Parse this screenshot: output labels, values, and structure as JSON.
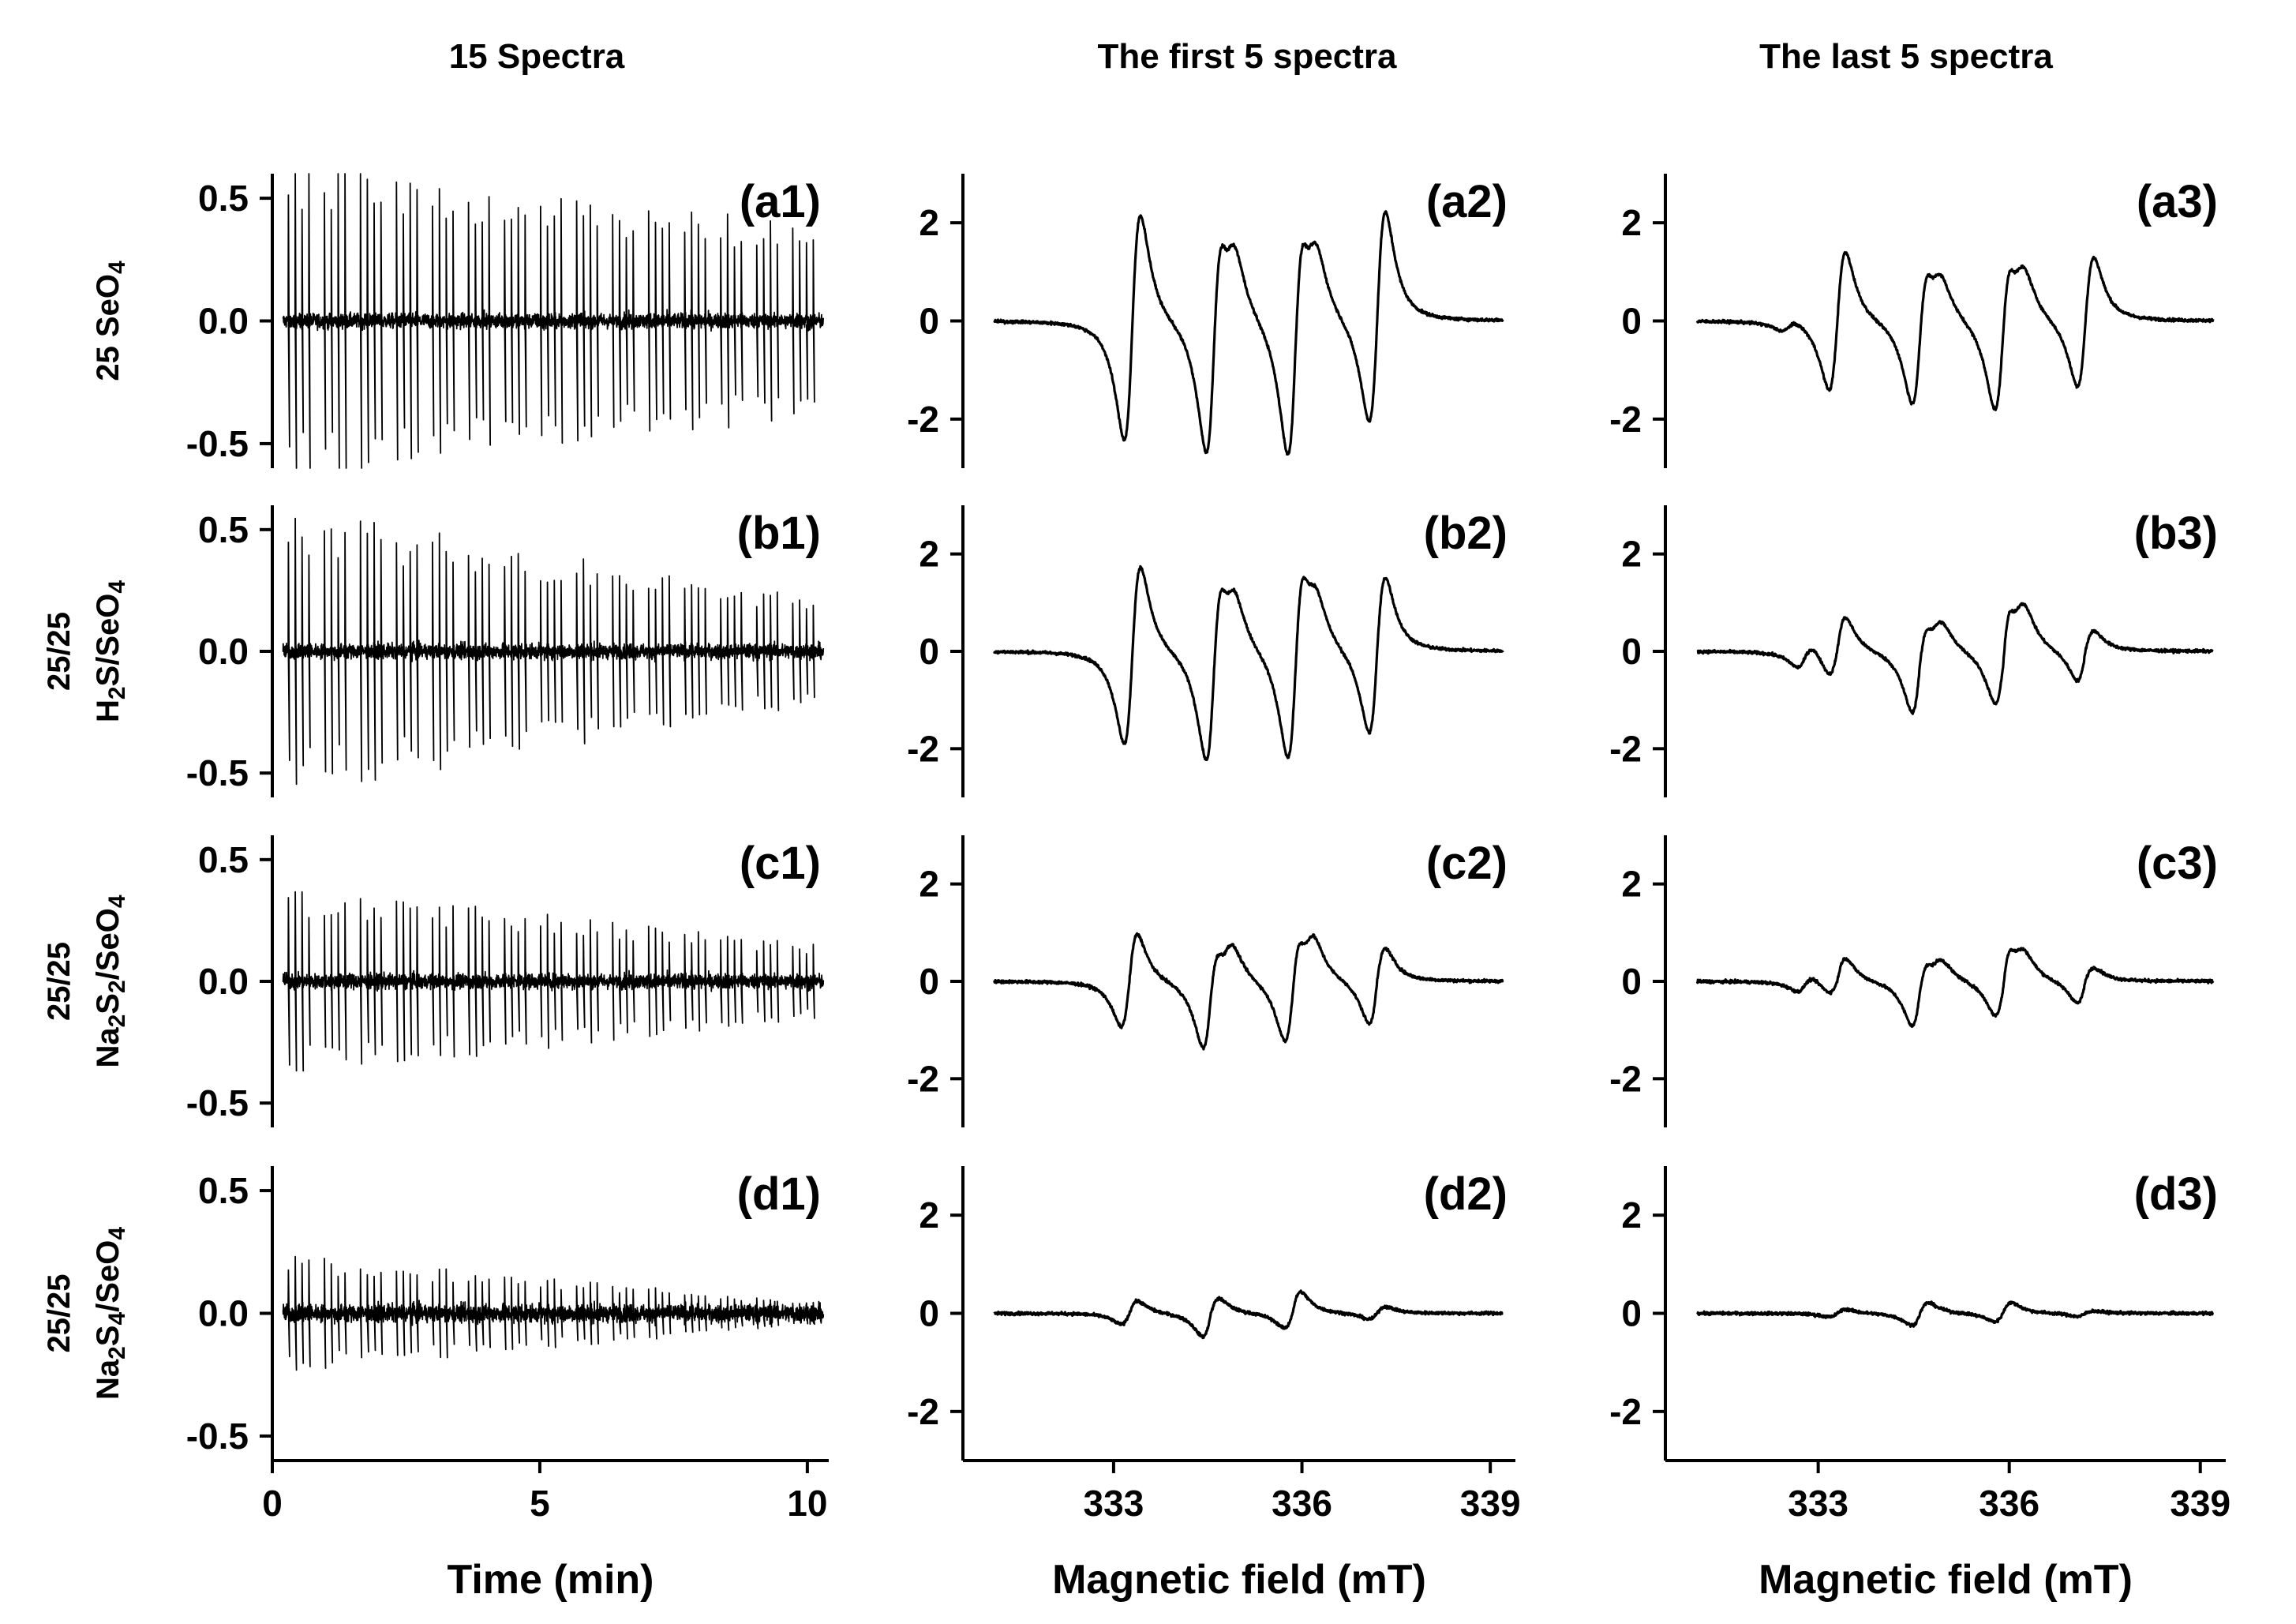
{
  "column_titles": [
    "15 Spectra",
    "The first 5 spectra",
    "The last 5 spectra"
  ],
  "row_labels": [
    {
      "prefix": "",
      "parts": [
        [
          "25 SeO",
          ""
        ],
        [
          "4",
          "sub"
        ]
      ]
    },
    {
      "prefix": "25/25",
      "parts": [
        [
          "H",
          ""
        ],
        [
          "2",
          "sub"
        ],
        [
          "S/SeO",
          ""
        ],
        [
          "4",
          "sub"
        ]
      ]
    },
    {
      "prefix": "25/25",
      "parts": [
        [
          "Na",
          ""
        ],
        [
          "2",
          "sub"
        ],
        [
          "S",
          ""
        ],
        [
          "2",
          "sub"
        ],
        [
          "/SeO",
          ""
        ],
        [
          "4",
          "sub"
        ]
      ]
    },
    {
      "prefix": "25/25",
      "parts": [
        [
          "Na",
          ""
        ],
        [
          "2",
          "sub"
        ],
        [
          "S",
          ""
        ],
        [
          "4",
          "sub"
        ],
        [
          "/SeO",
          ""
        ],
        [
          "4",
          "sub"
        ]
      ]
    }
  ],
  "row_label_text": [
    "25 SeO4",
    "25/25 H2S/SeO4",
    "25/25 Na2S2/SeO4",
    "25/25 Na2S4/SeO4"
  ],
  "chart_data": [
    {
      "id": "a1",
      "type": "line",
      "panel_label": "(a1)",
      "xlabel": "Time (min)",
      "ylabel": "",
      "xlim": [
        0,
        10.4
      ],
      "ylim": [
        -0.6,
        0.6
      ],
      "x_ticks": [
        {
          "v": 0,
          "label": "0"
        },
        {
          "v": 5,
          "label": "5"
        },
        {
          "v": 10,
          "label": "10"
        }
      ],
      "y_ticks": [
        {
          "v": 0.5,
          "label": "0.5"
        },
        {
          "v": 0,
          "label": "0.0"
        },
        {
          "v": -0.5,
          "label": "-0.5"
        }
      ],
      "series": [
        {
          "name": "25 SeO4",
          "x_start": 0.2,
          "x_end": 10.3,
          "scans": 15,
          "lines_per_scan": 4,
          "amp_start": 0.6,
          "amp_end": 0.36,
          "noise": 0.03
        }
      ]
    },
    {
      "id": "b1",
      "type": "line",
      "panel_label": "(b1)",
      "xlabel": "Time (min)",
      "ylabel": "",
      "xlim": [
        0,
        10.4
      ],
      "ylim": [
        -0.6,
        0.6
      ],
      "x_ticks": [
        {
          "v": 0,
          "label": "0"
        },
        {
          "v": 5,
          "label": "5"
        },
        {
          "v": 10,
          "label": "10"
        }
      ],
      "y_ticks": [
        {
          "v": 0.5,
          "label": "0.5"
        },
        {
          "v": 0,
          "label": "0.0"
        },
        {
          "v": -0.5,
          "label": "-0.5"
        }
      ],
      "series": [
        {
          "name": "25/25 H2S/SeO4",
          "x_start": 0.2,
          "x_end": 10.3,
          "scans": 15,
          "lines_per_scan": 4,
          "amp_start": 0.54,
          "amp_end": 0.2,
          "noise": 0.03
        }
      ]
    },
    {
      "id": "c1",
      "type": "line",
      "panel_label": "(c1)",
      "xlabel": "Time (min)",
      "ylabel": "",
      "xlim": [
        0,
        10.4
      ],
      "ylim": [
        -0.6,
        0.6
      ],
      "x_ticks": [
        {
          "v": 0,
          "label": "0"
        },
        {
          "v": 5,
          "label": "5"
        },
        {
          "v": 10,
          "label": "10"
        }
      ],
      "y_ticks": [
        {
          "v": 0.5,
          "label": "0.5"
        },
        {
          "v": 0,
          "label": "0.0"
        },
        {
          "v": -0.5,
          "label": "-0.5"
        }
      ],
      "series": [
        {
          "name": "25/25 Na2S2/SeO4",
          "x_start": 0.2,
          "x_end": 10.3,
          "scans": 15,
          "lines_per_scan": 4,
          "amp_start": 0.36,
          "amp_end": 0.14,
          "noise": 0.03
        }
      ]
    },
    {
      "id": "d1",
      "type": "line",
      "panel_label": "(d1)",
      "xlabel": "Time (min)",
      "ylabel": "",
      "xlim": [
        0,
        10.4
      ],
      "ylim": [
        -0.6,
        0.6
      ],
      "x_ticks": [
        {
          "v": 0,
          "label": "0"
        },
        {
          "v": 5,
          "label": "5"
        },
        {
          "v": 10,
          "label": "10"
        }
      ],
      "y_ticks": [
        {
          "v": 0.5,
          "label": "0.5"
        },
        {
          "v": 0,
          "label": "0.0"
        },
        {
          "v": -0.5,
          "label": "-0.5"
        }
      ],
      "series": [
        {
          "name": "25/25 Na2S4/SeO4",
          "x_start": 0.2,
          "x_end": 10.3,
          "scans": 15,
          "lines_per_scan": 4,
          "amp_start": 0.22,
          "amp_end": 0.04,
          "noise": 0.035
        }
      ]
    },
    {
      "id": "a2",
      "type": "line",
      "panel_label": "(a2)",
      "xlabel": "Magnetic field (mT)",
      "ylabel": "",
      "xlim": [
        330.6,
        339.4
      ],
      "ylim": [
        -3,
        3
      ],
      "x_ticks": [
        {
          "v": 333,
          "label": "333"
        },
        {
          "v": 336,
          "label": "336"
        },
        {
          "v": 339,
          "label": "339"
        }
      ],
      "y_ticks": [
        {
          "v": 2,
          "label": "2"
        },
        {
          "v": 0,
          "label": "0"
        },
        {
          "v": -2,
          "label": "-2"
        }
      ],
      "series": [
        {
          "name": "first 5 spectra",
          "x_start": 331.1,
          "x_end": 339.2,
          "baseline_amp": 0.03,
          "lines": [
            {
              "c": 333.3,
              "pos": 2.75,
              "neg": -2.55
            },
            {
              "c": 334.6,
              "pos": 2.8,
              "neg": -2.65
            },
            {
              "c": 334.85,
              "pos": 0.85,
              "neg": -0.75
            },
            {
              "c": 335.9,
              "pos": 2.9,
              "neg": -2.65
            },
            {
              "c": 336.15,
              "pos": 0.85,
              "neg": -0.75
            },
            {
              "c": 337.2,
              "pos": 2.45,
              "neg": -2.5
            }
          ]
        }
      ]
    },
    {
      "id": "b2",
      "type": "line",
      "panel_label": "(b2)",
      "xlabel": "Magnetic field (mT)",
      "ylabel": "",
      "xlim": [
        330.6,
        339.4
      ],
      "ylim": [
        -3,
        3
      ],
      "x_ticks": [
        {
          "v": 333,
          "label": "333"
        },
        {
          "v": 336,
          "label": "336"
        },
        {
          "v": 339,
          "label": "339"
        }
      ],
      "y_ticks": [
        {
          "v": 2,
          "label": "2"
        },
        {
          "v": 0,
          "label": "0"
        },
        {
          "v": -2,
          "label": "-2"
        }
      ],
      "series": [
        {
          "name": "first 5 spectra",
          "x_start": 331.1,
          "x_end": 339.2,
          "baseline_amp": 0.03,
          "lines": [
            {
              "c": 333.3,
              "pos": 2.15,
              "neg": -2.05
            },
            {
              "c": 334.6,
              "pos": 2.35,
              "neg": -2.15
            },
            {
              "c": 334.85,
              "pos": 0.65,
              "neg": -0.6
            },
            {
              "c": 335.9,
              "pos": 2.35,
              "neg": -2.35
            },
            {
              "c": 336.15,
              "pos": 0.6,
              "neg": -0.55
            },
            {
              "c": 337.2,
              "pos": 2.0,
              "neg": -1.7
            }
          ]
        }
      ]
    },
    {
      "id": "c2",
      "type": "line",
      "panel_label": "(c2)",
      "xlabel": "Magnetic field (mT)",
      "ylabel": "",
      "xlim": [
        330.6,
        339.4
      ],
      "ylim": [
        -3,
        3
      ],
      "x_ticks": [
        {
          "v": 333,
          "label": "333"
        },
        {
          "v": 336,
          "label": "336"
        },
        {
          "v": 339,
          "label": "339"
        }
      ],
      "y_ticks": [
        {
          "v": 2,
          "label": "2"
        },
        {
          "v": 0,
          "label": "0"
        },
        {
          "v": -2,
          "label": "-2"
        }
      ],
      "series": [
        {
          "name": "first 5 spectra",
          "x_start": 331.1,
          "x_end": 339.2,
          "baseline_amp": 0.03,
          "lines": [
            {
              "c": 333.25,
              "pos": 1.05,
              "neg": -1.15
            },
            {
              "c": 334.55,
              "pos": 1.4,
              "neg": -1.15
            },
            {
              "c": 334.8,
              "pos": 0.5,
              "neg": -0.45
            },
            {
              "c": 335.85,
              "pos": 1.25,
              "neg": -1.45
            },
            {
              "c": 336.1,
              "pos": 0.55,
              "neg": -0.5
            },
            {
              "c": 337.2,
              "pos": 1.05,
              "neg": -0.75
            }
          ]
        }
      ]
    },
    {
      "id": "d2",
      "type": "line",
      "panel_label": "(d2)",
      "xlabel": "Magnetic field (mT)",
      "ylabel": "",
      "xlim": [
        330.6,
        339.4
      ],
      "ylim": [
        -3,
        3
      ],
      "x_ticks": [
        {
          "v": 333,
          "label": "333"
        },
        {
          "v": 336,
          "label": "336"
        },
        {
          "v": 339,
          "label": "339"
        }
      ],
      "y_ticks": [
        {
          "v": 2,
          "label": "2"
        },
        {
          "v": 0,
          "label": "0"
        },
        {
          "v": -2,
          "label": "-2"
        }
      ],
      "series": [
        {
          "name": "first 5 spectra",
          "x_start": 331.1,
          "x_end": 339.2,
          "baseline_amp": 0.03,
          "lines": [
            {
              "c": 333.25,
              "pos": 0.25,
              "neg": -0.3
            },
            {
              "c": 334.55,
              "pos": 0.55,
              "neg": -0.35
            },
            {
              "c": 335.85,
              "pos": 0.35,
              "neg": -0.5
            },
            {
              "c": 337.2,
              "pos": 0.15,
              "neg": -0.15
            }
          ]
        }
      ]
    },
    {
      "id": "a3",
      "type": "line",
      "panel_label": "(a3)",
      "xlabel": "Magnetic field (mT)",
      "ylabel": "",
      "xlim": [
        330.6,
        339.4
      ],
      "ylim": [
        -3,
        3
      ],
      "x_ticks": [
        {
          "v": 333,
          "label": "333"
        },
        {
          "v": 336,
          "label": "336"
        },
        {
          "v": 339,
          "label": "339"
        }
      ],
      "y_ticks": [
        {
          "v": 2,
          "label": "2"
        },
        {
          "v": 0,
          "label": "0"
        },
        {
          "v": -2,
          "label": "-2"
        }
      ],
      "series": [
        {
          "name": "last 5 spectra",
          "x_start": 331.1,
          "x_end": 339.2,
          "baseline_amp": 0.03,
          "lines": [
            {
              "c": 332.55,
              "pos": 0.15,
              "neg": -0.1
            },
            {
              "c": 333.3,
              "pos": 1.6,
              "neg": -1.65
            },
            {
              "c": 334.6,
              "pos": 1.75,
              "neg": -1.65
            },
            {
              "c": 334.85,
              "pos": 0.55,
              "neg": -0.45
            },
            {
              "c": 335.9,
              "pos": 1.9,
              "neg": -1.8
            },
            {
              "c": 336.15,
              "pos": 0.6,
              "neg": -0.55
            },
            {
              "c": 337.2,
              "pos": 1.6,
              "neg": -1.45
            }
          ]
        }
      ]
    },
    {
      "id": "b3",
      "type": "line",
      "panel_label": "(b3)",
      "xlabel": "Magnetic field (mT)",
      "ylabel": "",
      "xlim": [
        330.6,
        339.4
      ],
      "ylim": [
        -3,
        3
      ],
      "x_ticks": [
        {
          "v": 333,
          "label": "333"
        },
        {
          "v": 336,
          "label": "336"
        },
        {
          "v": 339,
          "label": "339"
        }
      ],
      "y_ticks": [
        {
          "v": 2,
          "label": "2"
        },
        {
          "v": 0,
          "label": "0"
        },
        {
          "v": -2,
          "label": "-2"
        }
      ],
      "series": [
        {
          "name": "last 5 spectra",
          "x_start": 331.1,
          "x_end": 339.2,
          "baseline_amp": 0.03,
          "lines": [
            {
              "c": 332.8,
              "pos": 0.3,
              "neg": -0.25
            },
            {
              "c": 333.3,
              "pos": 0.6,
              "neg": -0.8
            },
            {
              "c": 334.6,
              "pos": 1.3,
              "neg": -0.95
            },
            {
              "c": 334.85,
              "pos": 0.4,
              "neg": -0.35
            },
            {
              "c": 335.9,
              "pos": 1.05,
              "neg": -1.55
            },
            {
              "c": 336.15,
              "pos": 0.6,
              "neg": -0.5
            },
            {
              "c": 337.2,
              "pos": 0.75,
              "neg": -0.45
            }
          ]
        }
      ]
    },
    {
      "id": "c3",
      "type": "line",
      "panel_label": "(c3)",
      "xlabel": "Magnetic field (mT)",
      "ylabel": "",
      "xlim": [
        330.6,
        339.4
      ],
      "ylim": [
        -3,
        3
      ],
      "x_ticks": [
        {
          "v": 333,
          "label": "333"
        },
        {
          "v": 336,
          "label": "336"
        },
        {
          "v": 339,
          "label": "339"
        }
      ],
      "y_ticks": [
        {
          "v": 2,
          "label": "2"
        },
        {
          "v": 0,
          "label": "0"
        },
        {
          "v": -2,
          "label": "-2"
        }
      ],
      "series": [
        {
          "name": "last 5 spectra",
          "x_start": 331.1,
          "x_end": 339.2,
          "baseline_amp": 0.03,
          "lines": [
            {
              "c": 332.8,
              "pos": 0.2,
              "neg": -0.15
            },
            {
              "c": 333.3,
              "pos": 0.3,
              "neg": -0.55
            },
            {
              "c": 334.6,
              "pos": 0.95,
              "neg": -0.7
            },
            {
              "c": 334.85,
              "pos": 0.3,
              "neg": -0.25
            },
            {
              "c": 335.9,
              "pos": 0.7,
              "neg": -1.1
            },
            {
              "c": 336.15,
              "pos": 0.35,
              "neg": -0.3
            },
            {
              "c": 337.2,
              "pos": 0.55,
              "neg": -0.3
            }
          ]
        }
      ]
    },
    {
      "id": "d3",
      "type": "line",
      "panel_label": "(d3)",
      "xlabel": "Magnetic field (mT)",
      "ylabel": "",
      "xlim": [
        330.6,
        339.4
      ],
      "ylim": [
        -3,
        3
      ],
      "x_ticks": [
        {
          "v": 333,
          "label": "333"
        },
        {
          "v": 336,
          "label": "336"
        },
        {
          "v": 339,
          "label": "339"
        }
      ],
      "y_ticks": [
        {
          "v": 2,
          "label": "2"
        },
        {
          "v": 0,
          "label": "0"
        },
        {
          "v": -2,
          "label": "-2"
        }
      ],
      "series": [
        {
          "name": "last 5 spectra",
          "x_start": 331.1,
          "x_end": 339.2,
          "baseline_amp": 0.03,
          "lines": [
            {
              "c": 333.3,
              "pos": 0.08,
              "neg": -0.1
            },
            {
              "c": 334.6,
              "pos": 0.28,
              "neg": -0.25
            },
            {
              "c": 335.9,
              "pos": 0.2,
              "neg": -0.25
            },
            {
              "c": 337.2,
              "pos": 0.08,
              "neg": -0.05
            }
          ]
        }
      ]
    }
  ]
}
